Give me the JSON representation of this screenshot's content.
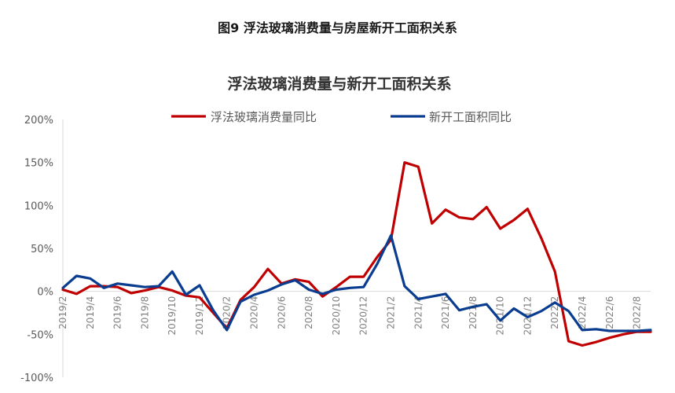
{
  "figure_title": "图9 浮法玻璃消费量与房屋新开工面积关系",
  "chart_data": {
    "type": "line",
    "title": "浮法玻璃消费量与新开工面积关系",
    "xlabel": "",
    "ylabel": "",
    "ylim": [
      -100,
      200
    ],
    "y_ticks": [
      "-100%",
      "-50%",
      "0%",
      "50%",
      "100%",
      "150%",
      "200%"
    ],
    "y_tick_values": [
      -100,
      -50,
      0,
      50,
      100,
      150,
      200
    ],
    "x_tick_labels": [
      "2019/2",
      "2019/4",
      "2019/6",
      "2019/8",
      "2019/10",
      "2019/12",
      "2020/2",
      "2020/4",
      "2020/6",
      "2020/8",
      "2020/10",
      "2020/12",
      "2021/2",
      "2021/4",
      "2021/6",
      "2021/8",
      "2021/10",
      "2021/12",
      "2022/2",
      "2022/4",
      "2022/6",
      "2022/8"
    ],
    "x": [
      "2019/2",
      "2019/3",
      "2019/4",
      "2019/5",
      "2019/6",
      "2019/7",
      "2019/8",
      "2019/9",
      "2019/10",
      "2019/11",
      "2019/12",
      "2020/1",
      "2020/2",
      "2020/3",
      "2020/4",
      "2020/5",
      "2020/6",
      "2020/7",
      "2020/8",
      "2020/9",
      "2020/10",
      "2020/11",
      "2020/12",
      "2021/1",
      "2021/2",
      "2021/3",
      "2021/4",
      "2021/5",
      "2021/6",
      "2021/7",
      "2021/8",
      "2021/9",
      "2021/10",
      "2021/11",
      "2021/12",
      "2022/1",
      "2022/2",
      "2022/3",
      "2022/4",
      "2022/5",
      "2022/6",
      "2022/7",
      "2022/8",
      "2022/9"
    ],
    "legend_position": "top",
    "grid": false,
    "series": [
      {
        "name": "浮法玻璃消费量同比",
        "color": "#c00000",
        "values": [
          2,
          -3,
          6,
          6,
          5,
          -2,
          1,
          5,
          1,
          -5,
          -7,
          -25,
          -43,
          -10,
          5,
          26,
          9,
          14,
          11,
          -6,
          5,
          17,
          17,
          40,
          60,
          150,
          145,
          79,
          95,
          86,
          84,
          98,
          73,
          83,
          96,
          62,
          23,
          -58,
          -63,
          -59,
          -54,
          -50,
          -47,
          -47
        ]
      },
      {
        "name": "新开工面积同比",
        "color": "#0a3d8f",
        "values": [
          4,
          18,
          15,
          4,
          9,
          7,
          5,
          6,
          23,
          -4,
          7,
          -22,
          -45,
          -12,
          -4,
          1,
          8,
          13,
          2,
          -3,
          2,
          4,
          5,
          32,
          65,
          6,
          -9,
          -6,
          -3,
          -22,
          -18,
          -15,
          -34,
          -20,
          -30,
          -23,
          -13,
          -23,
          -45,
          -44,
          -46,
          -46,
          -46,
          -45
        ]
      }
    ]
  }
}
